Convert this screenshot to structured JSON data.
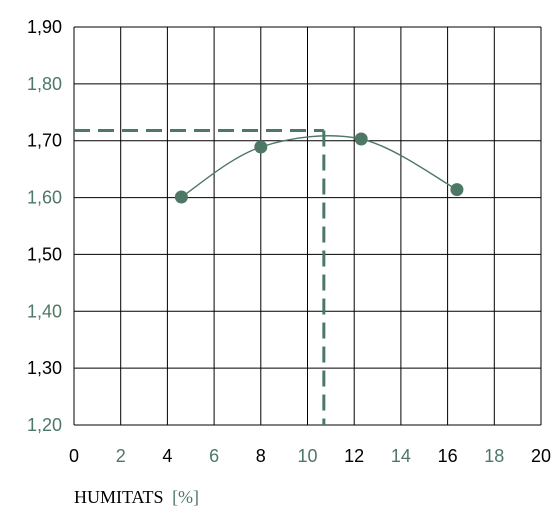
{
  "chart_data": {
    "type": "line",
    "title": "",
    "xlabel": "HUMITATS",
    "xlabel_unit": "[%]",
    "ylabel": "",
    "xlim": [
      0,
      20
    ],
    "ylim": [
      1.2,
      1.9
    ],
    "grid": true,
    "x_ticks": [
      "0",
      "2",
      "4",
      "6",
      "8",
      "10",
      "12",
      "14",
      "16",
      "18",
      "20"
    ],
    "y_ticks": [
      "1,20",
      "1,30",
      "1,40",
      "1,50",
      "1,60",
      "1,70",
      "1,80",
      "1,90"
    ],
    "series": [
      {
        "x": [
          4.6,
          8.0,
          12.3,
          16.4
        ],
        "y": [
          1.601,
          1.689,
          1.703,
          1.614
        ]
      }
    ],
    "reference_lines": {
      "x": 10.7,
      "y": 1.718
    },
    "colors": {
      "accent": "#4e7866",
      "grid": "#000000",
      "tick_black": "#000000"
    }
  }
}
